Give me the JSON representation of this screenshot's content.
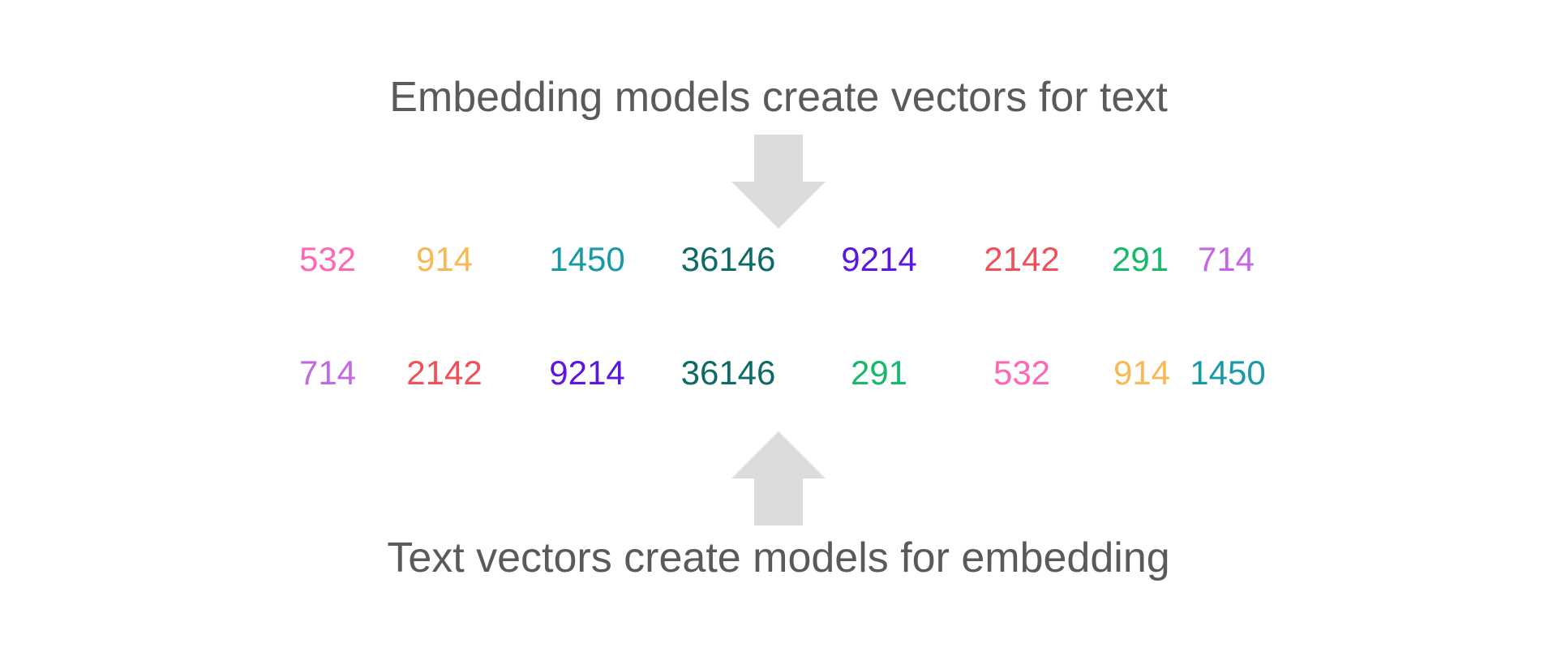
{
  "top_sentence": "Embedding models create vectors for text",
  "bottom_sentence": "Text vectors create models for embedding",
  "arrow_color": "#dcdcdc",
  "text_color": "#5a5a5a",
  "top_row": [
    {
      "value": "532",
      "color": "#ff66b3"
    },
    {
      "value": "914",
      "color": "#f7b955"
    },
    {
      "value": "1450",
      "color": "#1899a8"
    },
    {
      "value": "36146",
      "color": "#0d6b66"
    },
    {
      "value": "9214",
      "color": "#5b16e0"
    },
    {
      "value": "2142",
      "color": "#f0505a"
    },
    {
      "value": "291",
      "color": "#16b86a"
    },
    {
      "value": "714",
      "color": "#c268e0"
    }
  ],
  "bottom_row": [
    {
      "value": "714",
      "color": "#c268e0"
    },
    {
      "value": "2142",
      "color": "#f0505a"
    },
    {
      "value": "9214",
      "color": "#5b16e0"
    },
    {
      "value": "36146",
      "color": "#0d6b66"
    },
    {
      "value": "291",
      "color": "#16b86a"
    },
    {
      "value": "532",
      "color": "#ff66b3"
    },
    {
      "value": "914",
      "color": "#f7b955"
    },
    {
      "value": "1450",
      "color": "#1899a8"
    }
  ]
}
